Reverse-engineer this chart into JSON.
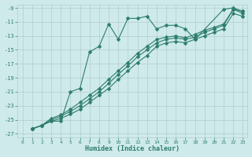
{
  "xlabel": "Humidex (Indice chaleur)",
  "bg_color": "#ceeaea",
  "grid_color": "#b0cccc",
  "line_color": "#2e7d6e",
  "xlim": [
    -0.5,
    23.5
  ],
  "ylim": [
    -27.5,
    -8.5
  ],
  "xticks": [
    0,
    1,
    2,
    3,
    4,
    5,
    6,
    7,
    8,
    9,
    10,
    11,
    12,
    13,
    14,
    15,
    16,
    17,
    18,
    19,
    20,
    21,
    22,
    23
  ],
  "yticks": [
    -27,
    -25,
    -23,
    -21,
    -19,
    -17,
    -15,
    -13,
    -11,
    -9
  ],
  "series_jagged_x": [
    1,
    2,
    3,
    4,
    5,
    6,
    7,
    8,
    9,
    10,
    11,
    12,
    13,
    14,
    15,
    16,
    17,
    18,
    21,
    22,
    23
  ],
  "series_jagged_y": [
    -26.3,
    -25.8,
    -25.2,
    -25.2,
    -21.0,
    -20.5,
    -15.3,
    -14.5,
    -11.3,
    -13.5,
    -10.5,
    -10.5,
    -10.2,
    -12.0,
    -11.5,
    -11.5,
    -12.0,
    -13.5,
    -9.2,
    -9.0,
    -9.5
  ],
  "series_line1_x": [
    1,
    2,
    3,
    4,
    5,
    6,
    7,
    8,
    9,
    10,
    11,
    12,
    13,
    14,
    15,
    16,
    17,
    18,
    19,
    20,
    21,
    22,
    23
  ],
  "series_line1_y": [
    -26.3,
    -25.8,
    -24.8,
    -24.3,
    -23.5,
    -22.5,
    -21.5,
    -20.5,
    -19.2,
    -18.0,
    -16.8,
    -15.5,
    -14.5,
    -13.5,
    -13.2,
    -13.0,
    -13.3,
    -12.8,
    -12.2,
    -11.8,
    -11.3,
    -9.2,
    -9.5
  ],
  "series_line2_x": [
    1,
    2,
    3,
    4,
    5,
    6,
    7,
    8,
    9,
    10,
    11,
    12,
    13,
    14,
    15,
    16,
    17,
    18,
    19,
    20,
    21,
    22,
    23
  ],
  "series_line2_y": [
    -26.3,
    -25.8,
    -25.0,
    -24.5,
    -23.8,
    -23.0,
    -22.0,
    -21.0,
    -19.8,
    -18.5,
    -17.3,
    -16.0,
    -15.0,
    -14.0,
    -13.5,
    -13.3,
    -13.5,
    -13.2,
    -12.5,
    -12.0,
    -11.5,
    -9.2,
    -9.8
  ],
  "series_line3_x": [
    1,
    2,
    3,
    4,
    5,
    6,
    7,
    8,
    9,
    10,
    11,
    12,
    13,
    14,
    15,
    16,
    17,
    18,
    19,
    20,
    21,
    22,
    23
  ],
  "series_line3_y": [
    -26.3,
    -25.8,
    -25.2,
    -24.8,
    -24.2,
    -23.5,
    -22.5,
    -21.5,
    -20.5,
    -19.2,
    -18.0,
    -16.8,
    -15.8,
    -14.5,
    -14.0,
    -13.8,
    -14.0,
    -13.5,
    -13.0,
    -12.5,
    -12.0,
    -9.8,
    -10.2
  ],
  "markersize": 2.5,
  "linewidth": 0.8
}
